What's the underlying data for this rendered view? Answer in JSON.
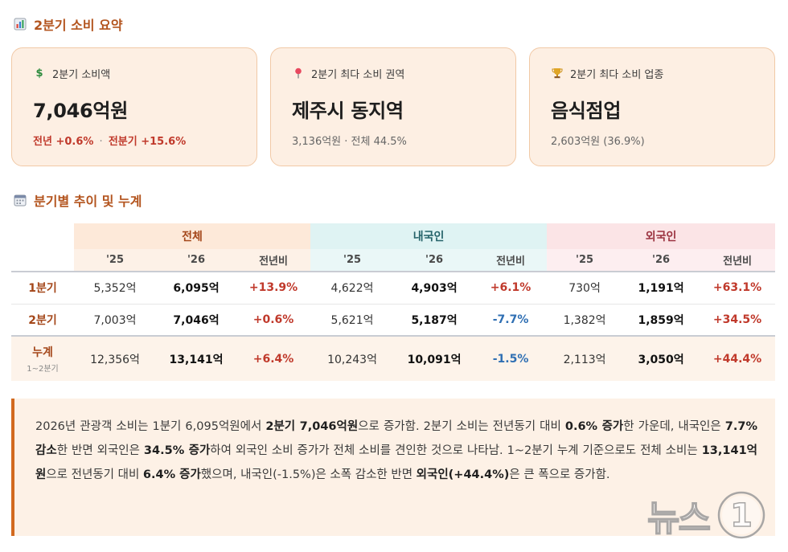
{
  "section1": {
    "title": "2분기 소비 요약",
    "icon": "bar-chart-icon"
  },
  "cards": [
    {
      "icon": "dollar-sign-icon",
      "label": "2분기 소비액",
      "value": "7,046억원",
      "sub_a": "전년 +0.6%",
      "sub_sep": "·",
      "sub_b": "전분기 +15.6%"
    },
    {
      "icon": "pushpin-icon",
      "label": "2분기 최다 소비 권역",
      "value": "제주시 동지역",
      "sub": "3,136억원 · 전체 44.5%"
    },
    {
      "icon": "trophy-icon",
      "label": "2분기 최다 소비 업종",
      "value": "음식점업",
      "sub": "2,603억원 (36.9%)"
    }
  ],
  "section2": {
    "title": "분기별 추이 및 누계",
    "icon": "calendar-icon"
  },
  "table": {
    "groups": [
      "전체",
      "내국인",
      "외국인"
    ],
    "subheaders": [
      "'25",
      "'26",
      "전년비",
      "'25",
      "'26",
      "전년비",
      "'25",
      "'26",
      "전년비"
    ],
    "rows": [
      {
        "label": "1분기",
        "sublabel": "",
        "cells": [
          "5,352억",
          "6,095억",
          "+13.9%",
          "4,622억",
          "4,903억",
          "+6.1%",
          "730억",
          "1,191억",
          "+63.1%"
        ]
      },
      {
        "label": "2분기",
        "sublabel": "",
        "cells": [
          "7,003억",
          "7,046억",
          "+0.6%",
          "5,621억",
          "5,187억",
          "-7.7%",
          "1,382억",
          "1,859억",
          "+34.5%"
        ]
      },
      {
        "label": "누계",
        "sublabel": "1~2분기",
        "cells": [
          "12,356억",
          "13,141억",
          "+6.4%",
          "10,243억",
          "10,091억",
          "-1.5%",
          "2,113억",
          "3,050억",
          "+44.4%"
        ]
      }
    ]
  },
  "summary": {
    "p1": "2026년 관광객 소비는 1분기 6,095억원에서 ",
    "b1": "2분기 7,046억원",
    "p2": "으로 증가함. 2분기 소비는 전년동기 대비 ",
    "b2": "0.6% 증가",
    "p3": "한 가운데, 내국인은 ",
    "b3": "7.7% 감소",
    "p4": "한 반면 외국인은 ",
    "b4": "34.5% 증가",
    "p5": "하여 외국인 소비 증가가 전체 소비를 견인한 것으로 나타남. 1~2분기 누계 기준으로도 전체 소비는 ",
    "b5": "13,141억원",
    "p6": "으로 전년동기 대비 ",
    "b6": "6.4% 증가",
    "p7": "했으며, 내국인(-1.5%)은 소폭 감소한 반면 ",
    "b7": "외국인(+44.4%)",
    "p8": "은 큰 폭으로 증가함."
  },
  "watermark": {
    "text": "뉴스",
    "mark": "1"
  },
  "colors": {
    "accent": "#b3541e",
    "up": "#c0392b",
    "down": "#2f6fb3",
    "card_bg": "#fdefe3"
  }
}
